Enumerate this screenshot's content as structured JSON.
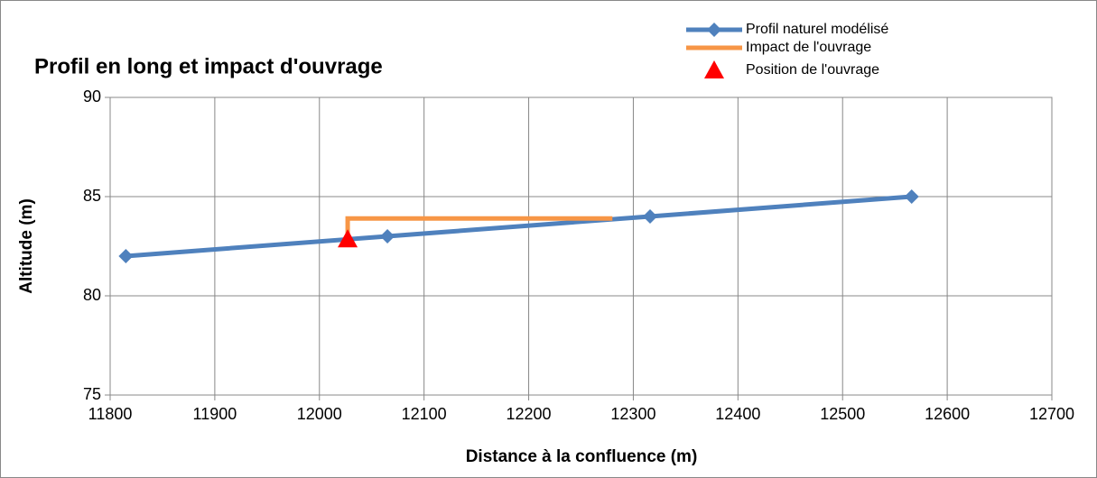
{
  "chart_data": {
    "type": "line",
    "title": "Profil en long et impact d'ouvrage",
    "xlabel": "Distance à la confluence (m)",
    "ylabel": "Altitude (m)",
    "xlim": [
      11800,
      12700
    ],
    "xticks": [
      11800,
      11900,
      12000,
      12100,
      12200,
      12300,
      12400,
      12500,
      12600,
      12700
    ],
    "ylim": [
      75,
      90
    ],
    "yticks": [
      75,
      80,
      85,
      90
    ],
    "grid": true,
    "legend": "top-right",
    "series": [
      {
        "name": "Profil naturel modélisé",
        "color": "#4f81bd",
        "line": true,
        "marker": "diamond",
        "x": [
          11815,
          12065,
          12316,
          12566
        ],
        "values": [
          82,
          83,
          84,
          85
        ]
      },
      {
        "name": "Impact de l'ouvrage",
        "color": "#f79646",
        "line": true,
        "marker": "none",
        "x": [
          12027,
          12027,
          12280
        ],
        "values": [
          82.85,
          83.9,
          83.9
        ]
      },
      {
        "name": "Position de l'ouvrage",
        "color": "#ff0000",
        "line": false,
        "marker": "triangle",
        "x": [
          12027
        ],
        "values": [
          82.85
        ]
      }
    ]
  }
}
